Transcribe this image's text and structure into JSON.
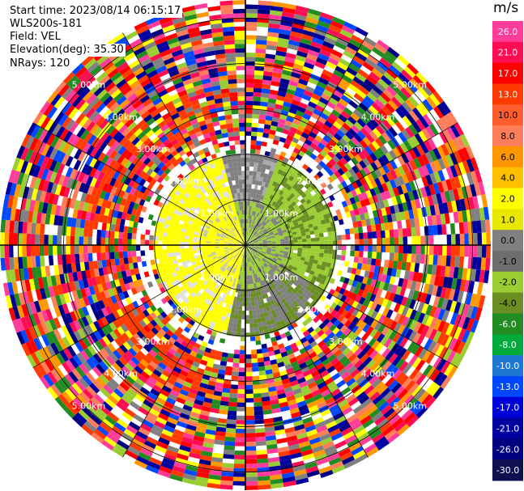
{
  "header": {
    "start_time": "Start time: 2023/08/14 06:15:17",
    "instrument": "WLS200s-181",
    "field": "Field: VEL",
    "elevation": "Elevation(deg): 35.30",
    "nrays": "NRays: 120"
  },
  "chart_data": {
    "type": "heatmap",
    "projection": "polar-ppi",
    "field": "VEL",
    "units": "m/s",
    "nrays": 120,
    "ring_labels": [
      "1.00km",
      "2.00km",
      "3.00km",
      "4.00km",
      "5.00km"
    ],
    "max_range_km": 5.4,
    "colorbar": {
      "unit": "m/s",
      "ticks": [
        "26.0",
        "21.0",
        "17.0",
        "13.0",
        "10.0",
        "8.0",
        "6.0",
        "4.0",
        "2.0",
        "1.0",
        "0.0",
        "-1.0",
        "-2.0",
        "-4.0",
        "-6.0",
        "-8.0",
        "-10.0",
        "-13.0",
        "-17.0",
        "-21.0",
        "-26.0",
        "-30.0"
      ],
      "colors": [
        "#ff3c9a",
        "#ff0d52",
        "#ff0000",
        "#ff3a00",
        "#ff5d2e",
        "#ff7e5a",
        "#ff9800",
        "#ffc000",
        "#ffff00",
        "#e8e800",
        "#808080",
        "#6e6e6e",
        "#9acd32",
        "#6b8e23",
        "#228b22",
        "#00aa3c",
        "#1e78d2",
        "#0048ff",
        "#0000d8",
        "#0000a0",
        "#000080",
        "#101050"
      ]
    },
    "regions": [
      {
        "name": "near-field approaching",
        "value": 2.0,
        "color": "#ffff00"
      },
      {
        "name": "near-field receding",
        "value": -2.0,
        "color": "#9acd32"
      },
      {
        "name": "near-field zero",
        "value": 0.0,
        "color": "#808080"
      },
      {
        "name": "far-field noise",
        "value": null,
        "color": "mixed"
      }
    ]
  }
}
